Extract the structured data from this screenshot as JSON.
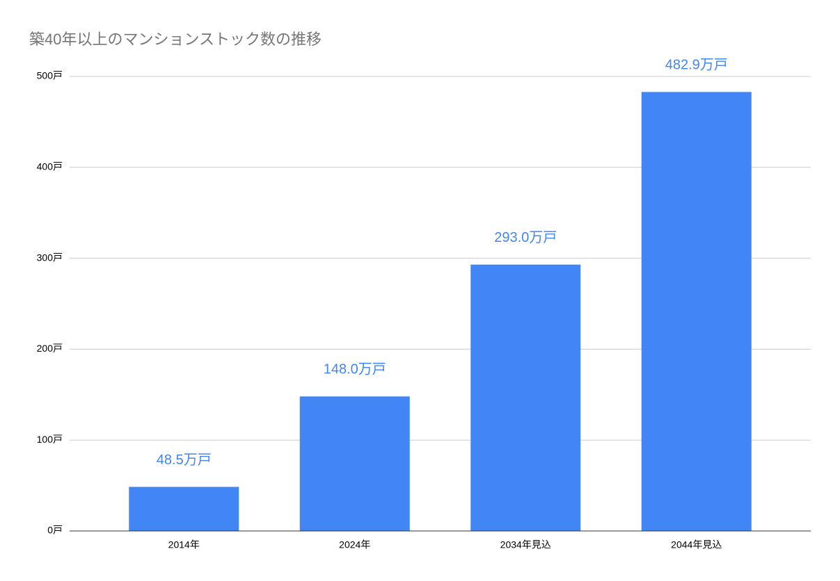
{
  "chart_data": {
    "type": "bar",
    "title": "築40年以上のマンションストック数の推移",
    "categories": [
      "2014年",
      "2024年",
      "2034年見込",
      "2044年見込"
    ],
    "values": [
      48.5,
      148.0,
      293.0,
      482.9
    ],
    "value_labels": [
      "48.5万戸",
      "148.0万戸",
      "293.0万戸",
      "482.9万戸"
    ],
    "color": "#4285f4",
    "ylim": [
      0,
      500
    ],
    "yticks": [
      {
        "value": 0,
        "label": "0戸"
      },
      {
        "value": 100,
        "label": "100戸"
      },
      {
        "value": 200,
        "label": "200戸"
      },
      {
        "value": 300,
        "label": "300戸"
      },
      {
        "value": 400,
        "label": "400戸"
      },
      {
        "value": 500,
        "label": "500戸"
      }
    ],
    "grid": true
  }
}
